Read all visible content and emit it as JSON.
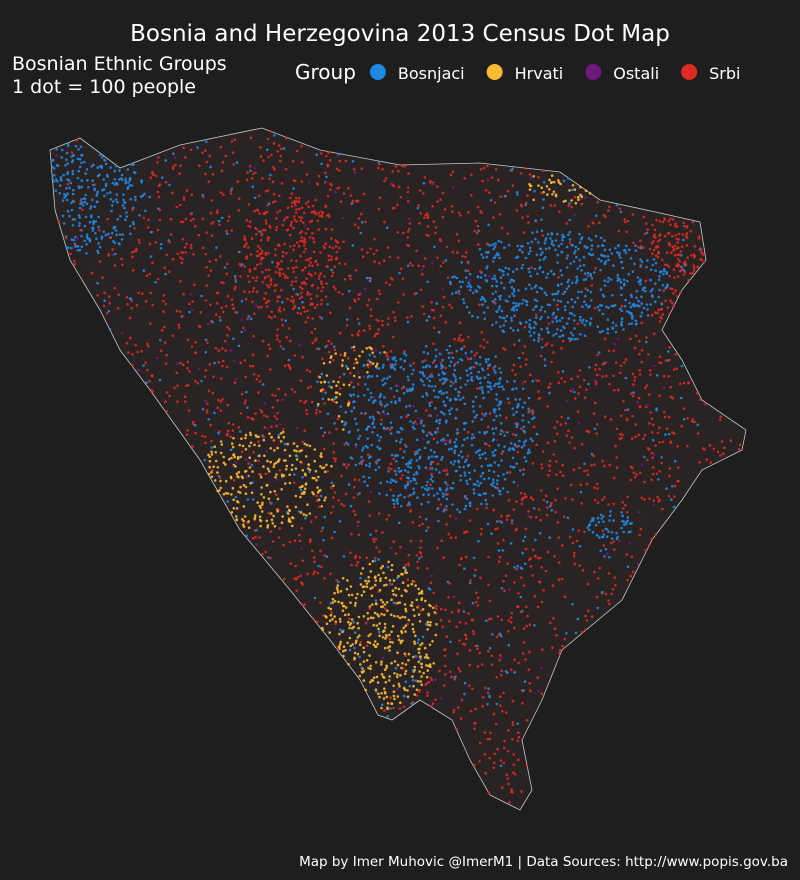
{
  "title": "Bosnia and Herzegovina 2013 Census Dot Map",
  "subtitle": [
    "Bosnian Ethnic Groups",
    "1 dot = 100 people"
  ],
  "legend": {
    "title": "Group",
    "items": [
      {
        "name": "Bosnjaci",
        "color": "#1e88e5"
      },
      {
        "name": "Hrvati",
        "color": "#fbb934"
      },
      {
        "name": "Ostali",
        "color": "#6e1a80"
      },
      {
        "name": "Srbi",
        "color": "#dc2a24"
      }
    ]
  },
  "caption": "Map by Imer Muhovic @ImerM1 | Data Sources: http://www.popis.gov.ba"
}
